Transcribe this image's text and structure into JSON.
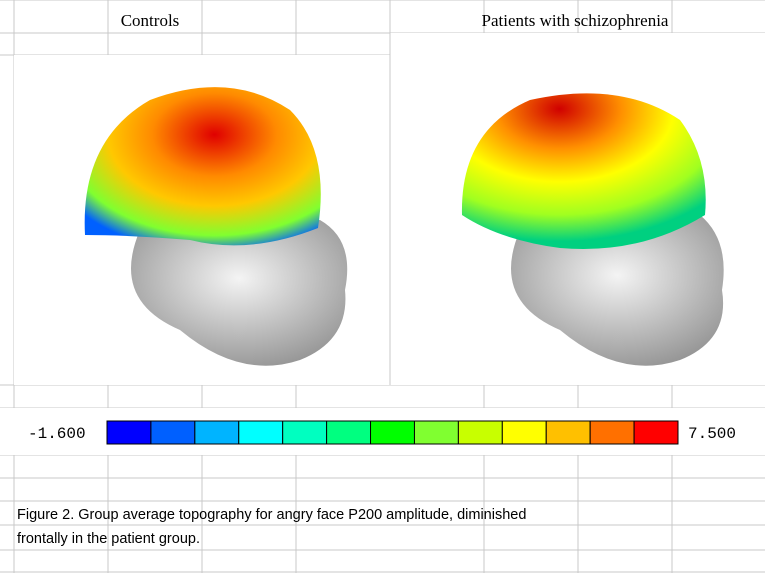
{
  "headers": [
    "Controls",
    "Patients with schizophrenia"
  ],
  "colorbar": {
    "min": {
      "value": -1.6,
      "label": "-1.600"
    },
    "max": {
      "value": 7.5,
      "label": "7.500"
    },
    "colors": [
      "#0000ff",
      "#0060ff",
      "#00b4ff",
      "#00ffff",
      "#00ffc0",
      "#00ff80",
      "#00ff00",
      "#80ff30",
      "#c8ff00",
      "#ffff00",
      "#ffc000",
      "#ff7000",
      "#ff0000"
    ]
  },
  "caption": [
    "Figure 2. Group average topography for angry face P200 amplitude, diminished",
    "frontally in the patient group."
  ]
}
